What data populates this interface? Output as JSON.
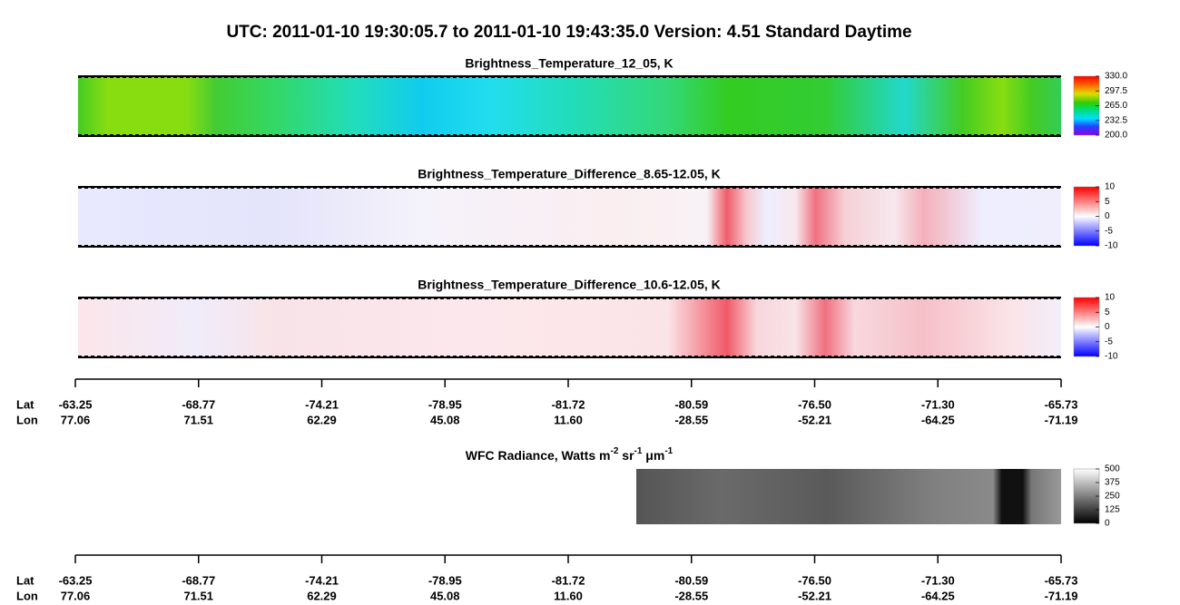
{
  "title": "UTC:  2011-01-10   19:30:05.7  to  2011-01-10   19:43:35.0    Version: 4.51  Standard Daytime",
  "chart_data": [
    {
      "type": "heatmap",
      "title": "Brightness_Temperature_12_05, K",
      "clim": [
        200,
        330
      ],
      "cticks": [
        {
          "value": 330,
          "label": "330.0"
        },
        {
          "value": 297.5,
          "label": "297.5"
        },
        {
          "value": 265,
          "label": "265.0"
        },
        {
          "value": 232.5,
          "label": "232.5"
        },
        {
          "value": 200,
          "label": "200.0"
        }
      ]
    },
    {
      "type": "heatmap",
      "title": "Brightness_Temperature_Difference_8.65-12.05, K",
      "clim": [
        -10,
        10
      ],
      "cticks": [
        10,
        5,
        0,
        -5,
        -10
      ]
    },
    {
      "type": "heatmap",
      "title": "Brightness_Temperature_Difference_10.6-12.05, K",
      "clim": [
        -10,
        10
      ],
      "cticks": [
        10,
        5,
        0,
        -5,
        -10
      ]
    },
    {
      "type": "heatmap",
      "title": "WFC Radiance, Watts m",
      "clim": [
        0,
        500
      ],
      "cticks": [
        500,
        375,
        250,
        125,
        0
      ]
    }
  ],
  "wfc_units": [
    "-2",
    " sr",
    "-1",
    " μm",
    "-1"
  ],
  "axes": [
    {
      "row_labels": [
        "Lat",
        "Lon"
      ],
      "lat": [
        "-63.25",
        "-68.77",
        "-74.21",
        "-78.95",
        "-81.72",
        "-80.59",
        "-76.50",
        "-71.30",
        "-65.73"
      ],
      "lon": [
        "77.06",
        "71.51",
        "62.29",
        "45.08",
        "11.60",
        "-28.55",
        "-52.21",
        "-64.25",
        "-71.19"
      ]
    },
    {
      "row_labels": [
        "Lat",
        "Lon"
      ],
      "lat": [
        "-63.25",
        "-68.77",
        "-74.21",
        "-78.95",
        "-81.72",
        "-80.59",
        "-76.50",
        "-71.30",
        "-65.73"
      ],
      "lon": [
        "77.06",
        "71.51",
        "62.29",
        "45.08",
        "11.60",
        "-28.55",
        "-52.21",
        "-64.25",
        "-71.19"
      ]
    }
  ]
}
